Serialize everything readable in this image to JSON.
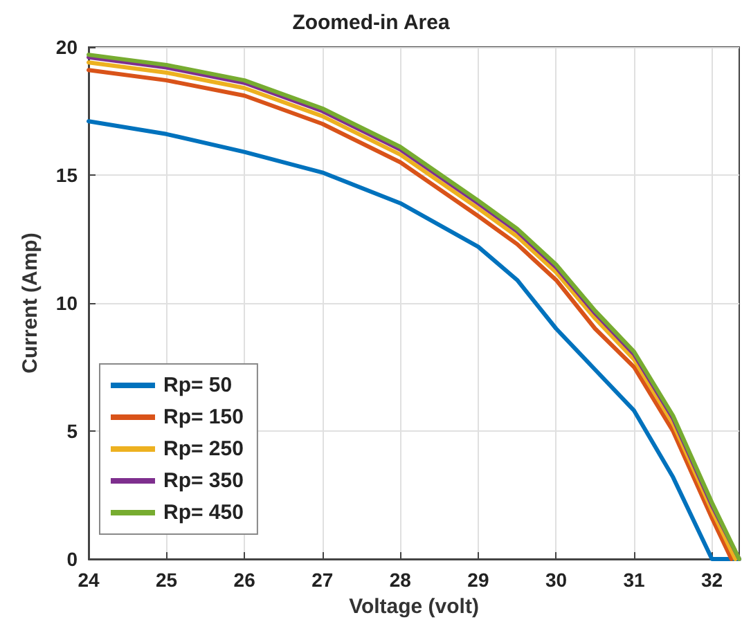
{
  "chart_data": {
    "type": "line",
    "title": "Zoomed-in Area",
    "xlabel": "Voltage (volt)",
    "ylabel": "Current (Amp)",
    "x": [
      24,
      25,
      26,
      27,
      28,
      29,
      29.5,
      30,
      30.5,
      31,
      31.5,
      32,
      32.35
    ],
    "series": [
      {
        "name": "Rp= 50",
        "color": "#0072bd",
        "values": [
          17.1,
          16.6,
          15.9,
          15.1,
          13.9,
          12.2,
          10.9,
          9.0,
          7.4,
          5.8,
          3.2,
          0,
          0
        ]
      },
      {
        "name": "Rp= 150",
        "color": "#d95319",
        "x": [
          24,
          25,
          26,
          27,
          28,
          29,
          29.5,
          30,
          30.5,
          31,
          31.5,
          32,
          32.25
        ],
        "values": [
          19.1,
          18.7,
          18.1,
          17.0,
          15.5,
          13.4,
          12.3,
          10.9,
          9.0,
          7.5,
          5.0,
          1.6,
          0
        ]
      },
      {
        "name": "Rp= 250",
        "color": "#edb120",
        "x": [
          24,
          25,
          26,
          27,
          28,
          29,
          29.5,
          30,
          30.5,
          31,
          31.5,
          32,
          32.3
        ],
        "values": [
          19.4,
          19.0,
          18.4,
          17.3,
          15.8,
          13.7,
          12.6,
          11.2,
          9.4,
          7.8,
          5.3,
          1.9,
          0
        ]
      },
      {
        "name": "Rp= 350",
        "color": "#7e2f8e",
        "values": [
          19.6,
          19.2,
          18.6,
          17.5,
          16.0,
          13.9,
          12.8,
          11.4,
          9.6,
          8.0,
          5.5,
          2.1,
          0
        ]
      },
      {
        "name": "Rp= 450",
        "color": "#77ac30",
        "values": [
          19.7,
          19.3,
          18.7,
          17.6,
          16.1,
          14.0,
          12.9,
          11.5,
          9.7,
          8.1,
          5.6,
          2.2,
          0
        ]
      }
    ],
    "xlim": [
      24,
      32.35
    ],
    "xticks": [
      24,
      25,
      26,
      27,
      28,
      29,
      30,
      31,
      32
    ],
    "ylim": [
      0,
      20
    ],
    "yticks": [
      0,
      5,
      10,
      15,
      20
    ],
    "grid": true,
    "legend": "bottom left",
    "marker": "none",
    "line_style": "solid"
  }
}
